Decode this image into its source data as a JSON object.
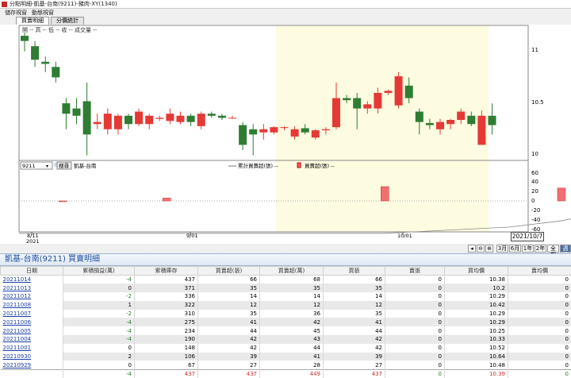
{
  "window": {
    "title": "分點明細-凱基-台南(9211)-豬肉-XY(1340)"
  },
  "menu": {
    "items": [
      "儲存視窗",
      "動態視窗"
    ]
  },
  "tabs": [
    {
      "label": "買賣明細",
      "active": true
    },
    {
      "label": "分價統計",
      "active": false
    }
  ],
  "chart": {
    "info_line": "開 --  高 --  低 --  收 --  成交量 --",
    "branch_code": "9211",
    "search_btn": "搜尋",
    "branch_name": "凱基-台南",
    "legend_cum": "累計買賣超(張) --",
    "legend_buy": "買賣超(張) --",
    "price_ticks": [
      "11",
      "10.5",
      "10"
    ],
    "volume_ticks": [
      "60",
      "40",
      "20",
      "0",
      "-20",
      "-40",
      "-60"
    ],
    "date_ticks": [
      {
        "label": "8/11",
        "sub": "2021"
      },
      {
        "label": "9/01",
        "sub": ""
      },
      {
        "label": "10/01",
        "sub": ""
      }
    ],
    "date_box": "2021/10/7"
  },
  "chart_data": {
    "type": "candlestick",
    "y_range": [
      9.95,
      11.25
    ],
    "candles": [
      [
        11.15,
        11.1,
        11.18,
        11.0
      ],
      [
        11.05,
        10.92,
        11.1,
        10.85
      ],
      [
        10.9,
        10.88,
        10.95,
        10.8
      ],
      [
        10.85,
        10.75,
        10.9,
        10.7
      ],
      [
        10.5,
        10.4,
        10.55,
        10.25
      ],
      [
        10.45,
        10.38,
        10.55,
        10.3
      ],
      [
        10.52,
        10.2,
        10.7,
        10.0
      ],
      [
        10.3,
        10.32,
        10.4,
        10.25
      ],
      [
        10.25,
        10.4,
        10.45,
        10.2
      ],
      [
        10.25,
        10.38,
        10.4,
        10.2
      ],
      [
        10.38,
        10.3,
        10.4,
        10.25
      ],
      [
        10.3,
        10.42,
        10.45,
        10.28
      ],
      [
        10.3,
        10.38,
        10.4,
        10.25
      ],
      [
        10.35,
        10.36,
        10.38,
        10.33
      ],
      [
        10.33,
        10.4,
        10.45,
        10.3
      ],
      [
        10.32,
        10.38,
        10.42,
        10.3
      ],
      [
        10.38,
        10.32,
        10.4,
        10.28
      ],
      [
        10.28,
        10.4,
        10.42,
        10.25
      ],
      [
        10.4,
        10.38,
        10.42,
        10.36
      ],
      [
        10.38,
        10.36,
        10.4,
        10.34
      ],
      [
        10.36,
        10.36,
        10.38,
        10.35
      ],
      [
        10.29,
        10.1,
        10.32,
        10.05
      ],
      [
        10.25,
        10.2,
        10.3,
        10.0
      ],
      [
        10.22,
        10.25,
        10.3,
        10.15
      ],
      [
        10.22,
        10.27,
        10.28,
        10.2
      ],
      [
        10.27,
        10.27,
        10.28,
        10.24
      ],
      [
        10.18,
        10.25,
        10.28,
        10.15
      ],
      [
        10.26,
        10.22,
        10.3,
        10.2
      ],
      [
        10.17,
        10.24,
        10.25,
        10.15
      ],
      [
        10.24,
        10.25,
        10.27,
        10.2
      ],
      [
        10.27,
        10.55,
        10.7,
        10.25
      ],
      [
        10.55,
        10.53,
        10.58,
        10.5
      ],
      [
        10.55,
        10.45,
        10.6,
        10.25
      ],
      [
        10.45,
        10.49,
        10.52,
        10.4
      ],
      [
        10.45,
        10.6,
        10.65,
        10.4
      ],
      [
        10.6,
        10.62,
        10.63,
        10.58
      ],
      [
        10.48,
        10.76,
        10.8,
        10.45
      ],
      [
        10.67,
        10.55,
        10.75,
        10.5
      ],
      [
        10.42,
        10.32,
        10.45,
        10.2
      ],
      [
        10.31,
        10.29,
        10.35,
        10.25
      ],
      [
        10.25,
        10.32,
        10.35,
        10.2
      ],
      [
        10.3,
        10.34,
        10.35,
        10.25
      ],
      [
        10.34,
        10.42,
        10.45,
        10.3
      ],
      [
        10.38,
        10.3,
        10.42,
        10.28
      ],
      [
        10.1,
        10.38,
        10.43,
        10.1
      ],
      [
        10.38,
        10.29,
        10.5,
        10.2
      ]
    ],
    "buy_sell_range": [
      -60,
      60
    ],
    "buy_sell": [
      [
        4,
        -1
      ],
      [
        14,
        6
      ],
      [
        35,
        30
      ],
      [
        52,
        27
      ],
      [
        58,
        25
      ],
      [
        60,
        41
      ],
      [
        61,
        42
      ],
      [
        62,
        44
      ],
      [
        63,
        45
      ],
      [
        64,
        43
      ],
      [
        65,
        39
      ],
      [
        66,
        14
      ],
      [
        67,
        14
      ],
      [
        68,
        35
      ],
      [
        69,
        66
      ]
    ],
    "cum_line": [
      [
        0,
        -68
      ],
      [
        20,
        -68
      ],
      [
        35,
        -68
      ],
      [
        47,
        -55
      ],
      [
        52,
        -42
      ],
      [
        57,
        -20
      ],
      [
        61,
        0
      ],
      [
        64,
        12
      ],
      [
        66,
        20
      ],
      [
        68,
        35
      ],
      [
        69,
        55
      ]
    ]
  },
  "toolbar": {
    "buttons": [
      "3月",
      "6月",
      "1年",
      "2年",
      "全部",
      "週線"
    ]
  },
  "detail": {
    "title": "凱基-台南(9211) 買賣明細",
    "columns": [
      "日期",
      "累積損益(萬)",
      "累積庫存",
      "買賣超(張)",
      "買賣超(萬)",
      "買張",
      "賣張",
      "買均價",
      "賣均價"
    ],
    "rows": [
      [
        "20211014",
        "-4",
        "437",
        "66",
        "68",
        "66",
        "0",
        "10.38",
        "0"
      ],
      [
        "20211013",
        "0",
        "371",
        "35",
        "35",
        "35",
        "0",
        "10.2",
        "0"
      ],
      [
        "20211012",
        "-2",
        "336",
        "14",
        "14",
        "14",
        "0",
        "10.29",
        "0"
      ],
      [
        "20211008",
        "1",
        "322",
        "12",
        "12",
        "12",
        "0",
        "10.42",
        "0"
      ],
      [
        "20211007",
        "-2",
        "310",
        "35",
        "36",
        "35",
        "0",
        "10.29",
        "0"
      ],
      [
        "20211006",
        "-4",
        "275",
        "41",
        "42",
        "41",
        "0",
        "10.29",
        "0"
      ],
      [
        "20211005",
        "-4",
        "234",
        "44",
        "45",
        "44",
        "0",
        "10.25",
        "0"
      ],
      [
        "20211004",
        "-4",
        "190",
        "42",
        "43",
        "42",
        "0",
        "10.33",
        "0"
      ],
      [
        "20211001",
        "0",
        "148",
        "42",
        "44",
        "42",
        "0",
        "10.52",
        "0"
      ],
      [
        "20210930",
        "2",
        "106",
        "39",
        "41",
        "39",
        "0",
        "10.64",
        "0"
      ],
      [
        "20210929",
        "0",
        "67",
        "27",
        "28",
        "27",
        "0",
        "10.48",
        "0"
      ]
    ],
    "summary": [
      "",
      "-4",
      "437",
      "437",
      "449",
      "437",
      "0",
      "10.39",
      "0"
    ]
  }
}
